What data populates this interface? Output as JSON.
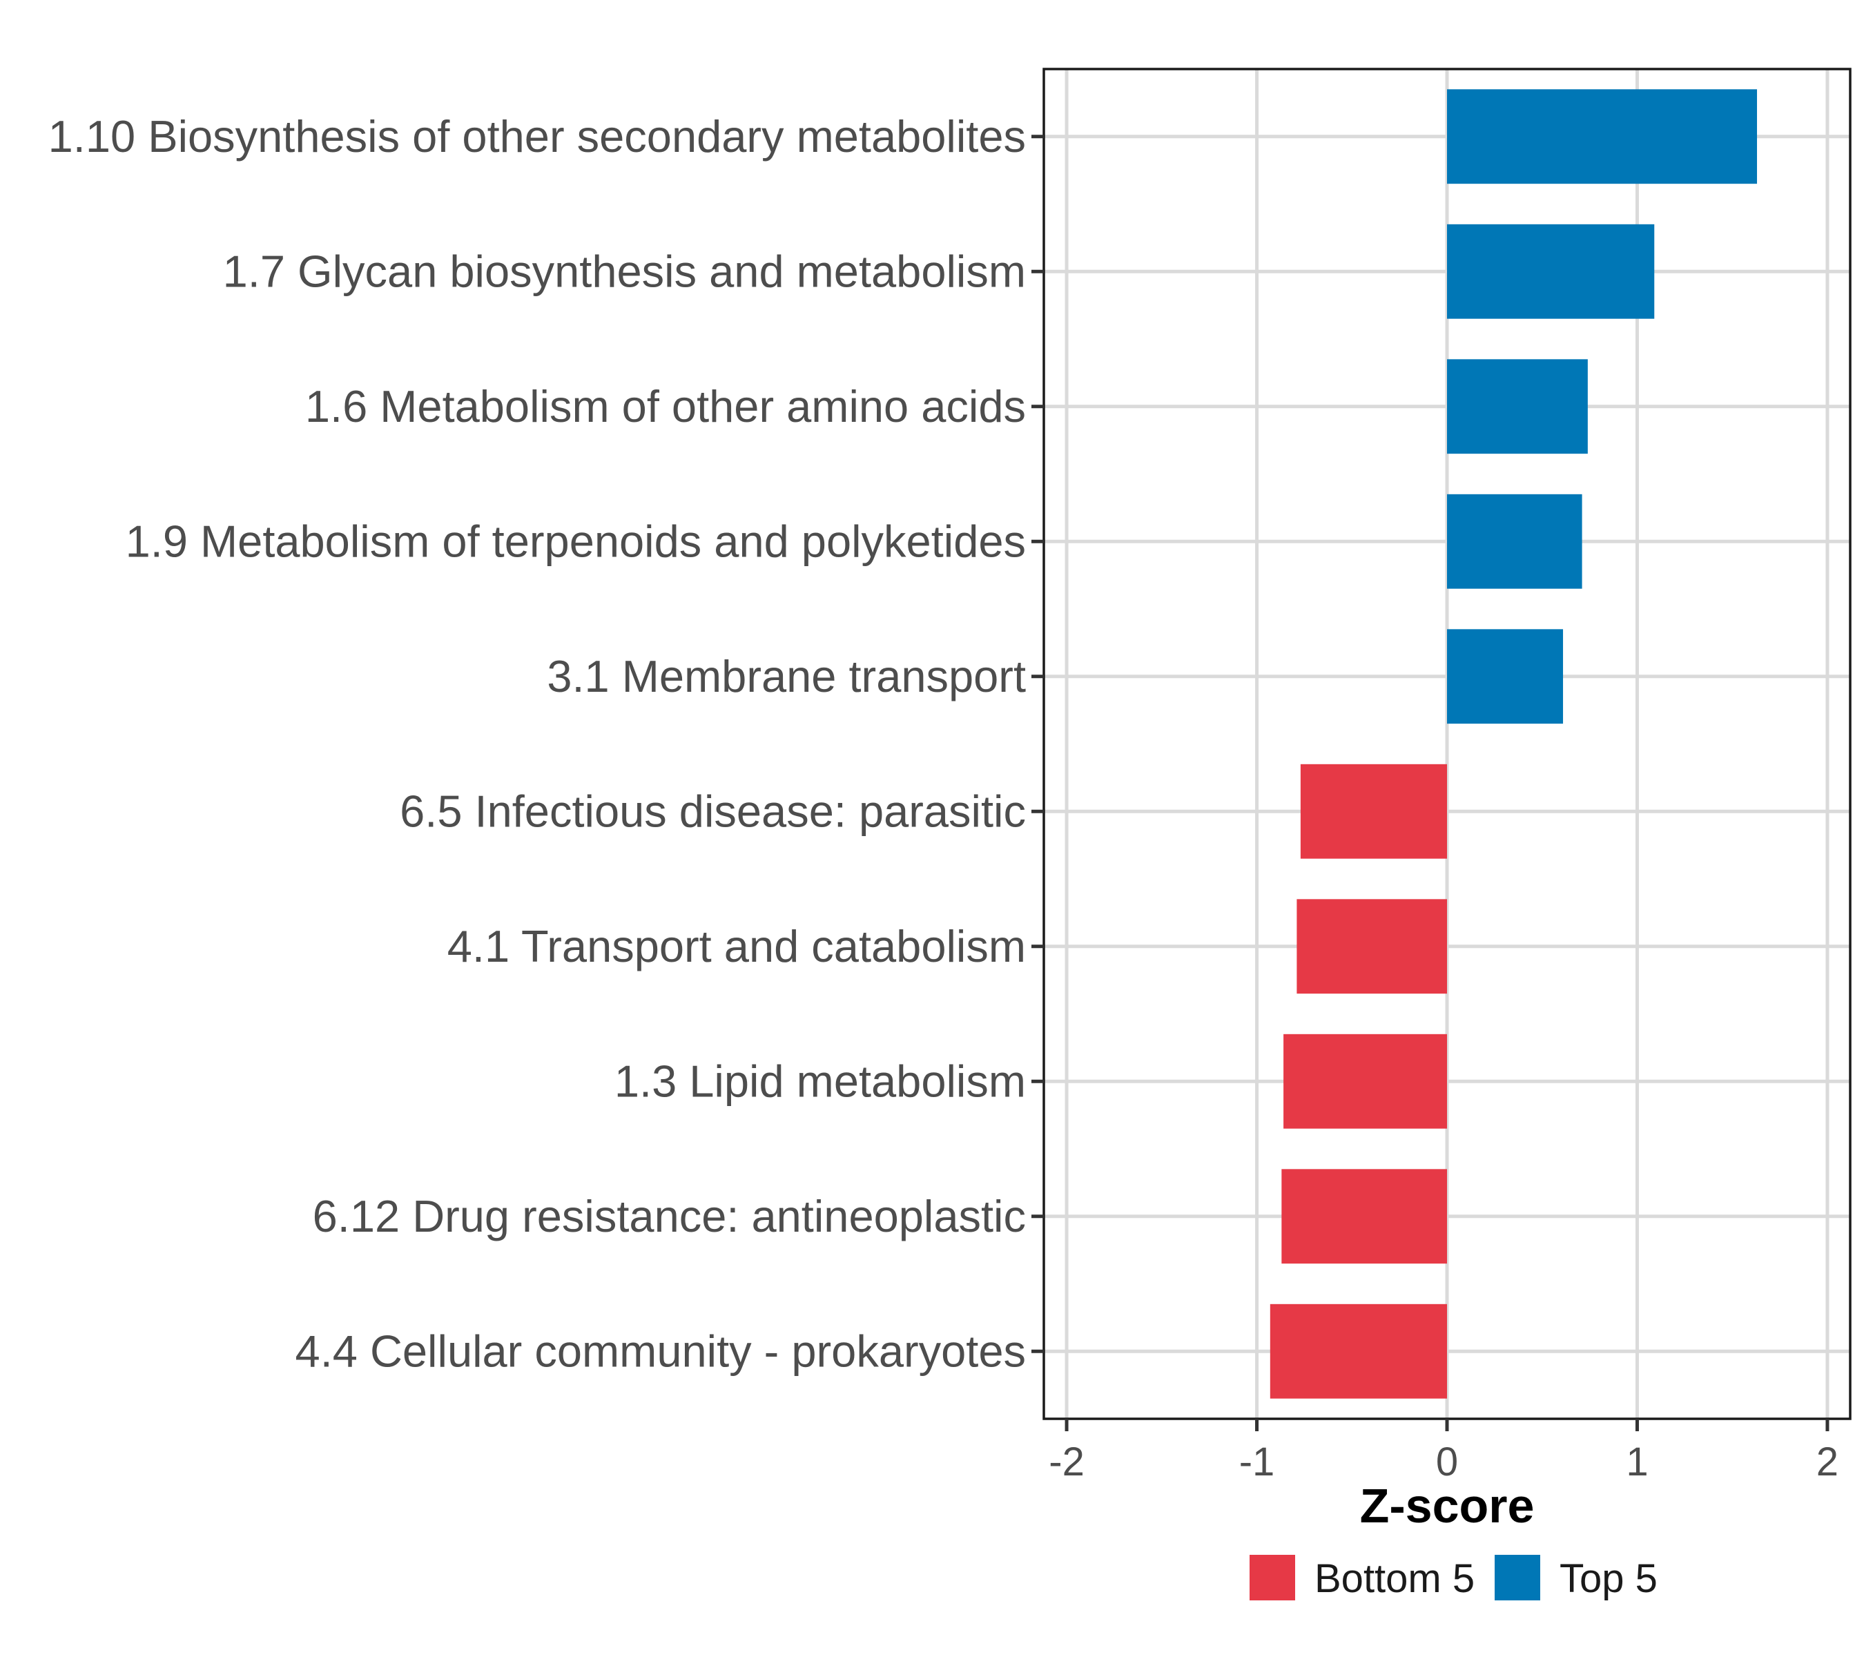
{
  "chart_data": {
    "type": "bar",
    "orientation": "horizontal",
    "title": "",
    "xlabel": "Z-score",
    "ylabel": "",
    "xlim": [
      -2.12,
      2.12
    ],
    "x_ticks": [
      -2,
      -1,
      0,
      1,
      2
    ],
    "x_tick_labels": [
      "-2",
      "-1",
      "0",
      "1",
      "2"
    ],
    "grid": true,
    "legend_position": "bottom",
    "categories": [
      "1.10 Biosynthesis of other secondary metabolites",
      "1.7 Glycan biosynthesis and metabolism",
      "1.6 Metabolism of other amino acids",
      "1.9 Metabolism of terpenoids and polyketides",
      "3.1 Membrane transport",
      "6.5 Infectious disease: parasitic",
      "4.1 Transport and catabolism",
      "1.3 Lipid metabolism",
      "6.12 Drug resistance: antineoplastic",
      "4.4 Cellular community - prokaryotes"
    ],
    "values": [
      1.63,
      1.09,
      0.74,
      0.71,
      0.61,
      -0.77,
      -0.79,
      -0.86,
      -0.87,
      -0.93
    ],
    "groups": [
      "Top 5",
      "Top 5",
      "Top 5",
      "Top 5",
      "Top 5",
      "Bottom 5",
      "Bottom 5",
      "Bottom 5",
      "Bottom 5",
      "Bottom 5"
    ],
    "legend": [
      {
        "name": "Bottom 5",
        "color": "#e63946"
      },
      {
        "name": "Top 5",
        "color": "#0077b6"
      }
    ]
  }
}
